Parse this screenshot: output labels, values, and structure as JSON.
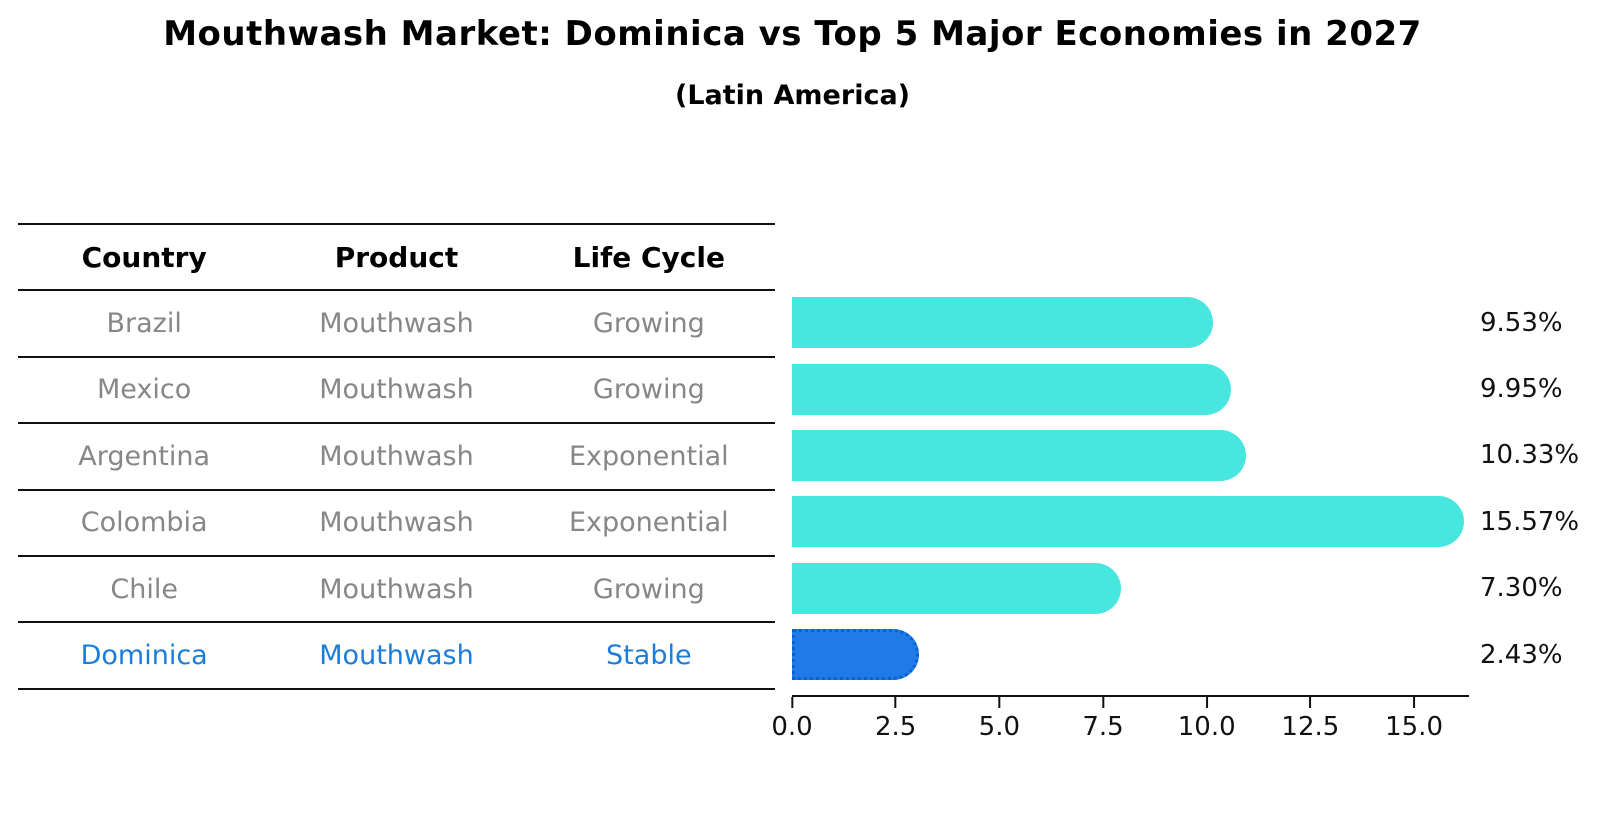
{
  "title": "Mouthwash Market: Dominica vs Top 5 Major Economies in 2027",
  "subtitle": "(Latin America)",
  "table": {
    "headers": [
      "Country",
      "Product",
      "Life Cycle"
    ],
    "rows": [
      {
        "country": "Brazil",
        "product": "Mouthwash",
        "life_cycle": "Growing"
      },
      {
        "country": "Mexico",
        "product": "Mouthwash",
        "life_cycle": "Growing"
      },
      {
        "country": "Argentina",
        "product": "Mouthwash",
        "life_cycle": "Exponential"
      },
      {
        "country": "Colombia",
        "product": "Mouthwash",
        "life_cycle": "Exponential"
      },
      {
        "country": "Chile",
        "product": "Mouthwash",
        "life_cycle": "Growing"
      },
      {
        "country": "Dominica",
        "product": "Mouthwash",
        "life_cycle": "Stable"
      }
    ],
    "highlighted_row": "Dominica"
  },
  "chart_data": {
    "type": "bar",
    "orientation": "horizontal",
    "categories": [
      "Brazil",
      "Mexico",
      "Argentina",
      "Colombia",
      "Chile",
      "Dominica"
    ],
    "values": [
      9.53,
      9.95,
      10.33,
      15.57,
      7.3,
      2.43
    ],
    "value_labels": [
      "9.53%",
      "9.95%",
      "10.33%",
      "15.57%",
      "7.30%",
      "2.43%"
    ],
    "x_ticks": [
      0.0,
      2.5,
      5.0,
      7.5,
      10.0,
      12.5,
      15.0
    ],
    "x_tick_labels": [
      "0.0",
      "2.5",
      "5.0",
      "7.5",
      "10.0",
      "12.5",
      "15.0"
    ],
    "xlim": [
      0,
      16.33
    ],
    "grid": false,
    "legend": false,
    "highlight_index": 5,
    "bar_color": "#47E7E0",
    "highlight_color": "#1E7BE8",
    "highlight_edge_color": "#0D5FD6"
  },
  "colors": {
    "table_text": "#878787",
    "highlight_text": "#1C7CD9",
    "axis": "#111111"
  }
}
